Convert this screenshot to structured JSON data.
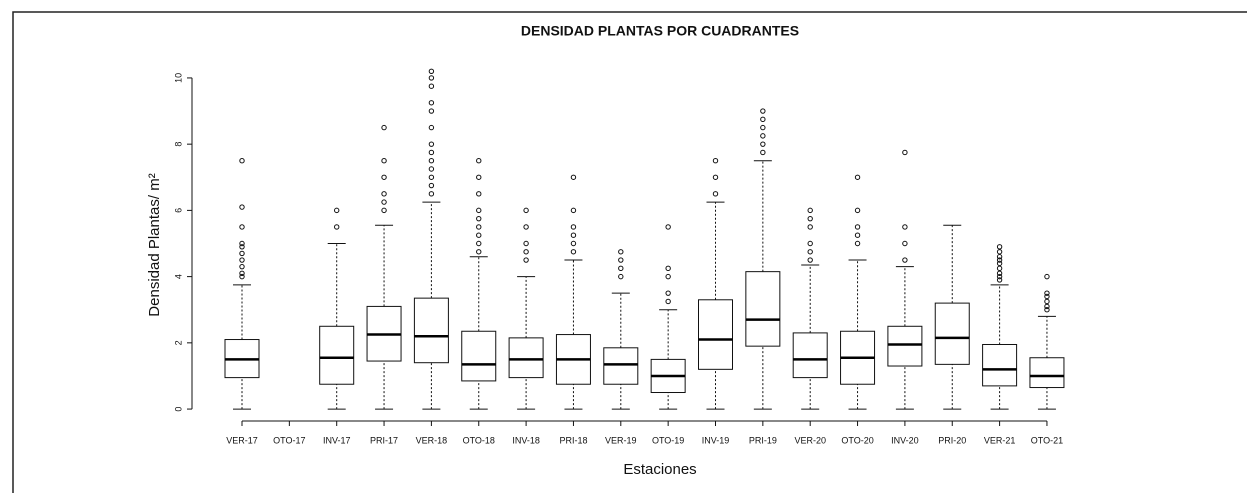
{
  "chart_data": {
    "type": "box",
    "title": "DENSIDAD PLANTAS POR CUADRANTES",
    "xlabel": "Estaciones",
    "ylabel": "Densidad Plantas/ m²",
    "categories": [
      "VER-17",
      "OTO-17",
      "INV-17",
      "PRI-17",
      "VER-18",
      "OTO-18",
      "INV-18",
      "PRI-18",
      "VER-19",
      "OTO-19",
      "INV-19",
      "PRI-19",
      "VER-20",
      "OTO-20",
      "INV-20",
      "PRI-20",
      "VER-21",
      "OTO-21"
    ],
    "boxes": [
      {
        "low": 0,
        "q1": 0.95,
        "median": 1.5,
        "q3": 2.1,
        "high": 3.75,
        "outliers": [
          4,
          4.1,
          4.3,
          4.5,
          4.7,
          4.9,
          5,
          5.5,
          6.1,
          7.5
        ]
      },
      null,
      {
        "low": 0,
        "q1": 0.75,
        "median": 1.55,
        "q3": 2.5,
        "high": 5.0,
        "outliers": [
          5.5,
          6.0
        ]
      },
      {
        "low": 0,
        "q1": 1.45,
        "median": 2.25,
        "q3": 3.1,
        "high": 5.55,
        "outliers": [
          6,
          6.25,
          6.5,
          7,
          7.5,
          8.5
        ]
      },
      {
        "low": 0,
        "q1": 1.4,
        "median": 2.2,
        "q3": 3.35,
        "high": 6.25,
        "outliers": [
          6.5,
          6.75,
          7,
          7.25,
          7.5,
          7.75,
          8,
          8.5,
          9,
          9.25,
          9.75,
          10,
          10.2
        ]
      },
      {
        "low": 0,
        "q1": 0.85,
        "median": 1.35,
        "q3": 2.35,
        "high": 4.6,
        "outliers": [
          4.75,
          5,
          5.25,
          5.5,
          5.75,
          6,
          6.5,
          7,
          7.5
        ]
      },
      {
        "low": 0,
        "q1": 0.95,
        "median": 1.5,
        "q3": 2.15,
        "high": 4.0,
        "outliers": [
          4.5,
          4.75,
          5,
          5.5,
          6
        ]
      },
      {
        "low": 0,
        "q1": 0.75,
        "median": 1.5,
        "q3": 2.25,
        "high": 4.5,
        "outliers": [
          4.75,
          5,
          5.25,
          5.5,
          6,
          7
        ]
      },
      {
        "low": 0,
        "q1": 0.75,
        "median": 1.35,
        "q3": 1.85,
        "high": 3.5,
        "outliers": [
          4,
          4.25,
          4.5,
          4.75
        ]
      },
      {
        "low": 0,
        "q1": 0.5,
        "median": 1.0,
        "q3": 1.5,
        "high": 3.0,
        "outliers": [
          3.25,
          3.5,
          4,
          4.25,
          5.5
        ]
      },
      {
        "low": 0,
        "q1": 1.2,
        "median": 2.1,
        "q3": 3.3,
        "high": 6.25,
        "outliers": [
          6.5,
          7,
          7.5
        ]
      },
      {
        "low": 0,
        "q1": 1.9,
        "median": 2.7,
        "q3": 4.15,
        "high": 7.5,
        "outliers": [
          7.75,
          8,
          8.25,
          8.5,
          8.75,
          9
        ]
      },
      {
        "low": 0,
        "q1": 0.95,
        "median": 1.5,
        "q3": 2.3,
        "high": 4.35,
        "outliers": [
          4.5,
          4.75,
          5,
          5.5,
          5.75,
          6
        ]
      },
      {
        "low": 0,
        "q1": 0.75,
        "median": 1.55,
        "q3": 2.35,
        "high": 4.5,
        "outliers": [
          5,
          5.25,
          5.5,
          6,
          7
        ]
      },
      {
        "low": 0,
        "q1": 1.3,
        "median": 1.95,
        "q3": 2.5,
        "high": 4.3,
        "outliers": [
          4.5,
          5,
          5.5,
          7.75
        ]
      },
      {
        "low": 0,
        "q1": 1.35,
        "median": 2.15,
        "q3": 3.2,
        "high": 5.55,
        "outliers": []
      },
      {
        "low": 0,
        "q1": 0.7,
        "median": 1.2,
        "q3": 1.95,
        "high": 3.75,
        "outliers": [
          3.9,
          4,
          4.1,
          4.25,
          4.4,
          4.5,
          4.6,
          4.75,
          4.9
        ]
      },
      {
        "low": 0,
        "q1": 0.65,
        "median": 1.0,
        "q3": 1.55,
        "high": 2.8,
        "outliers": [
          3,
          3.1,
          3.25,
          3.4,
          3.5,
          4
        ]
      }
    ],
    "ylim": [
      -0.3,
      10.3
    ],
    "yticks": [
      0,
      2,
      4,
      6,
      8,
      10
    ]
  }
}
